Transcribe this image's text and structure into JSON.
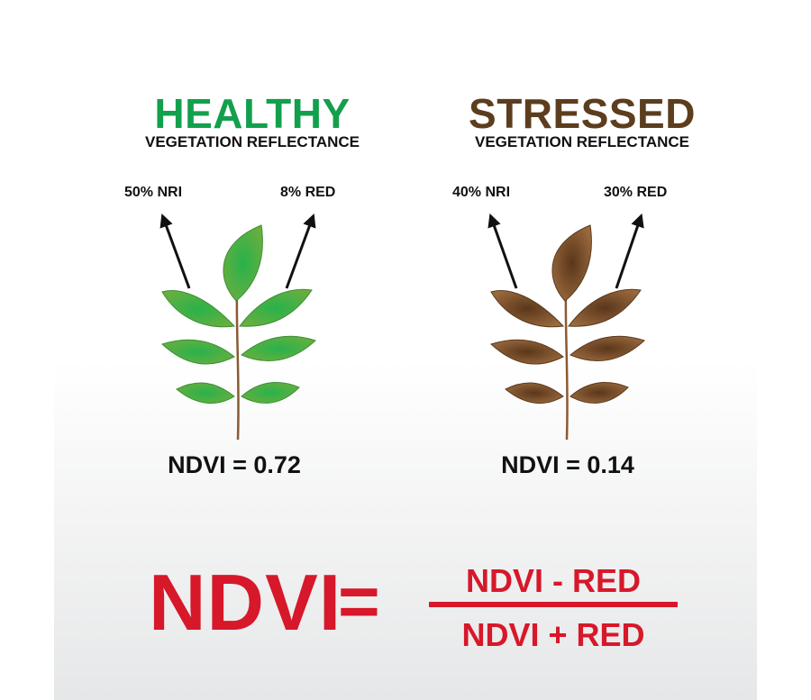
{
  "healthy": {
    "title": "HEALTHY",
    "subtitle": "VEGETATION REFLECTANCE",
    "nri_label": "50% NRI",
    "red_label": "8% RED",
    "ndvi": "NDVI = 0.72",
    "color": "#13a04d",
    "leaf_color": "#4caf48",
    "leaf_center": "#2fa84a"
  },
  "stressed": {
    "title": "STRESSED",
    "subtitle": "VEGETATION REFLECTANCE",
    "nri_label": "40% NRI",
    "red_label": "30% RED",
    "ndvi": "NDVI = 0.14",
    "color": "#5c3d1e",
    "leaf_color": "#8a5a32",
    "leaf_center": "#5b3a1e"
  },
  "formula": {
    "lhs": "NDVI",
    "equals": "=",
    "numerator": "NDVI - RED",
    "denominator": "NDVI + RED",
    "color": "#d7182a"
  }
}
